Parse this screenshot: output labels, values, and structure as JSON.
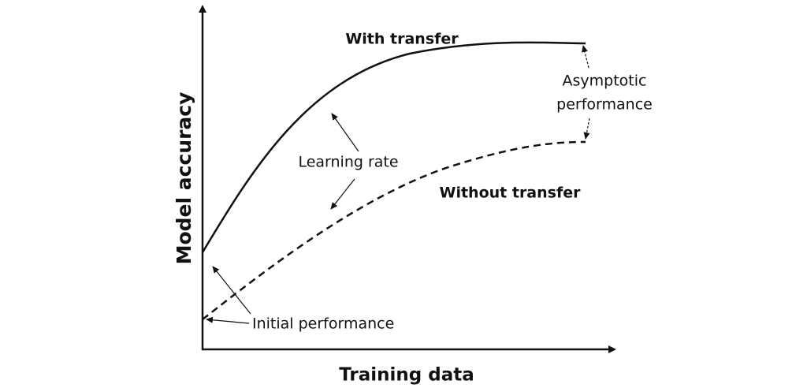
{
  "axes": {
    "x_label": "Training data",
    "y_label": "Model accuracy"
  },
  "curves": [
    {
      "label": "With transfer"
    },
    {
      "label": "Without transfer"
    }
  ],
  "annotations": {
    "learning_rate": "Learning rate",
    "asymptotic_performance": [
      "Asymptotic",
      "performance"
    ],
    "initial_performance": "Initial performance"
  }
}
